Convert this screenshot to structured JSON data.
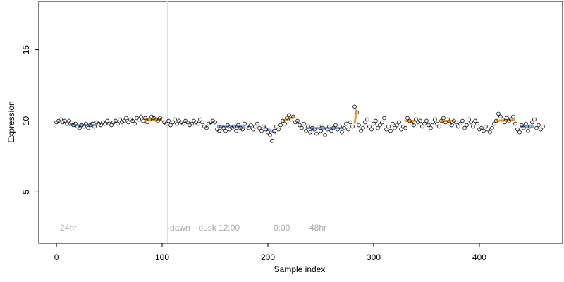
{
  "chart_data": {
    "type": "scatter",
    "xlabel": "Sample index",
    "ylabel": "Expression",
    "xlim": [
      -16.7,
      478.7
    ],
    "ylim": [
      1.4,
      18.4
    ],
    "xticks": [
      0,
      100,
      200,
      300,
      400
    ],
    "yticks": [
      5,
      10,
      15
    ],
    "point_color": "#000000",
    "vlines": [
      105,
      133,
      151,
      203,
      237
    ],
    "vline_color": "#dddddd",
    "annotations": [
      {
        "text": "24hr",
        "x": 2
      },
      {
        "text": "dawn",
        "x": 106
      },
      {
        "text": "dusk",
        "x": 133
      },
      {
        "text": "12:00",
        "x": 152
      },
      {
        "text": "0:00",
        "x": 204
      },
      {
        "text": "48hr",
        "x": 238
      }
    ],
    "annotation_y": 2.1,
    "segments": [
      {
        "color": "#8fb0e0",
        "x": [
          12,
          38
        ],
        "y": [
          9.7,
          9.7
        ]
      },
      {
        "color": "#f0a030",
        "x": [
          84,
          100
        ],
        "y": [
          10.1,
          10.1
        ]
      },
      {
        "color": "#8fb0e0",
        "x": [
          152,
          178
        ],
        "y": [
          9.6,
          9.6
        ]
      },
      {
        "color": "#8fb0e0",
        "x": [
          196,
          208
        ],
        "y": [
          9.6,
          9.1
        ]
      },
      {
        "color": "#f0a030",
        "x": [
          214,
          226
        ],
        "y": [
          10.0,
          10.3
        ]
      },
      {
        "color": "#8fb0e0",
        "x": [
          236,
          272
        ],
        "y": [
          9.5,
          9.5
        ]
      },
      {
        "color": "#f0a030",
        "x": [
          282,
          284
        ],
        "y": [
          9.8,
          10.8
        ]
      },
      {
        "color": "#f0a030",
        "x": [
          330,
          340
        ],
        "y": [
          10.0,
          10.0
        ]
      },
      {
        "color": "#f0a030",
        "x": [
          364,
          376
        ],
        "y": [
          10.0,
          10.0
        ]
      },
      {
        "color": "#f0a030",
        "x": [
          416,
          434
        ],
        "y": [
          10.0,
          10.1
        ]
      },
      {
        "color": "#8fb0e0",
        "x": [
          438,
          452
        ],
        "y": [
          9.6,
          9.6
        ]
      }
    ],
    "x": [
      0,
      2,
      4,
      6,
      8,
      10,
      12,
      14,
      16,
      18,
      20,
      22,
      24,
      26,
      28,
      30,
      32,
      34,
      36,
      38,
      40,
      42,
      44,
      46,
      48,
      50,
      52,
      54,
      56,
      58,
      60,
      62,
      64,
      66,
      68,
      70,
      72,
      74,
      76,
      78,
      80,
      82,
      84,
      86,
      88,
      90,
      92,
      94,
      96,
      98,
      100,
      102,
      104,
      106,
      108,
      110,
      112,
      114,
      116,
      118,
      120,
      122,
      124,
      126,
      128,
      130,
      132,
      134,
      136,
      138,
      140,
      142,
      144,
      146,
      148,
      150,
      152,
      154,
      156,
      158,
      160,
      162,
      164,
      166,
      168,
      170,
      172,
      174,
      176,
      178,
      180,
      182,
      184,
      186,
      188,
      190,
      192,
      194,
      196,
      198,
      200,
      202,
      204,
      206,
      208,
      210,
      212,
      214,
      216,
      218,
      220,
      222,
      224,
      226,
      228,
      230,
      232,
      234,
      236,
      238,
      240,
      242,
      244,
      246,
      248,
      250,
      252,
      254,
      256,
      258,
      260,
      262,
      264,
      266,
      268,
      270,
      272,
      274,
      276,
      278,
      280,
      282,
      284,
      286,
      288,
      290,
      292,
      294,
      296,
      298,
      300,
      302,
      304,
      306,
      308,
      310,
      312,
      314,
      316,
      318,
      320,
      322,
      324,
      326,
      328,
      330,
      332,
      334,
      336,
      338,
      340,
      342,
      344,
      346,
      348,
      350,
      352,
      354,
      356,
      358,
      360,
      362,
      364,
      366,
      368,
      370,
      372,
      374,
      376,
      378,
      380,
      382,
      384,
      386,
      388,
      390,
      392,
      394,
      396,
      398,
      400,
      402,
      404,
      406,
      408,
      410,
      412,
      414,
      416,
      418,
      420,
      422,
      424,
      426,
      428,
      430,
      432,
      434,
      436,
      438,
      440,
      442,
      444,
      446,
      448,
      450,
      452,
      454,
      456,
      458,
      460
    ],
    "y": [
      9.9,
      10.0,
      10.1,
      9.9,
      10.0,
      9.8,
      10.0,
      9.9,
      9.7,
      9.8,
      9.6,
      9.5,
      9.7,
      9.6,
      9.8,
      9.5,
      9.7,
      9.8,
      9.6,
      9.9,
      9.8,
      9.7,
      9.9,
      9.8,
      10.0,
      9.8,
      9.7,
      9.9,
      10.0,
      9.8,
      10.1,
      9.9,
      10.0,
      10.2,
      9.9,
      10.1,
      10.0,
      9.8,
      10.2,
      10.1,
      10.3,
      10.0,
      10.2,
      9.9,
      10.1,
      10.3,
      10.2,
      10.1,
      10.0,
      10.2,
      10.1,
      9.9,
      9.8,
      10.0,
      9.7,
      9.9,
      10.1,
      9.8,
      10.0,
      9.9,
      9.8,
      10.0,
      9.9,
      9.7,
      9.8,
      10.0,
      9.9,
      9.8,
      10.1,
      9.9,
      9.6,
      9.5,
      9.8,
      9.9,
      10.0,
      9.9,
      9.4,
      9.3,
      9.6,
      9.5,
      9.3,
      9.7,
      9.4,
      9.5,
      9.6,
      9.3,
      9.7,
      9.5,
      9.4,
      9.8,
      9.6,
      9.5,
      9.7,
      9.4,
      9.6,
      9.8,
      9.5,
      9.3,
      9.6,
      9.4,
      9.2,
      9.0,
      8.6,
      9.3,
      9.6,
      9.4,
      9.7,
      10.0,
      9.8,
      10.2,
      10.4,
      10.1,
      10.3,
      9.9,
      10.0,
      9.7,
      9.5,
      9.8,
      9.3,
      9.6,
      9.2,
      9.5,
      9.4,
      9.1,
      9.6,
      9.3,
      9.5,
      9.0,
      9.4,
      9.6,
      9.3,
      9.5,
      9.7,
      9.4,
      9.6,
      9.2,
      9.5,
      9.8,
      9.4,
      9.9,
      9.6,
      11.0,
      10.6,
      9.7,
      9.3,
      9.5,
      9.9,
      10.1,
      9.6,
      9.4,
      9.8,
      10.0,
      9.5,
      9.7,
      9.9,
      10.2,
      9.4,
      9.6,
      9.3,
      9.8,
      9.5,
      9.7,
      9.9,
      9.4,
      9.6,
      9.5,
      10.2,
      10.0,
      9.8,
      9.7,
      10.1,
      9.9,
      10.0,
      9.6,
      9.8,
      10.0,
      9.7,
      9.5,
      9.9,
      10.1,
      9.8,
      9.6,
      10.0,
      10.2,
      9.9,
      10.1,
      9.8,
      9.7,
      10.0,
      9.9,
      9.6,
      9.8,
      10.0,
      9.5,
      9.7,
      10.1,
      9.9,
      9.6,
      10.0,
      9.8,
      9.4,
      9.5,
      9.3,
      9.6,
      9.4,
      9.2,
      9.5,
      9.8,
      10.0,
      10.5,
      10.3,
      10.1,
      9.9,
      10.2,
      10.0,
      10.1,
      10.3,
      9.8,
      9.4,
      9.2,
      9.7,
      9.5,
      9.8,
      9.3,
      9.6,
      9.9,
      10.1,
      9.5,
      9.7,
      9.4,
      9.6
    ]
  }
}
